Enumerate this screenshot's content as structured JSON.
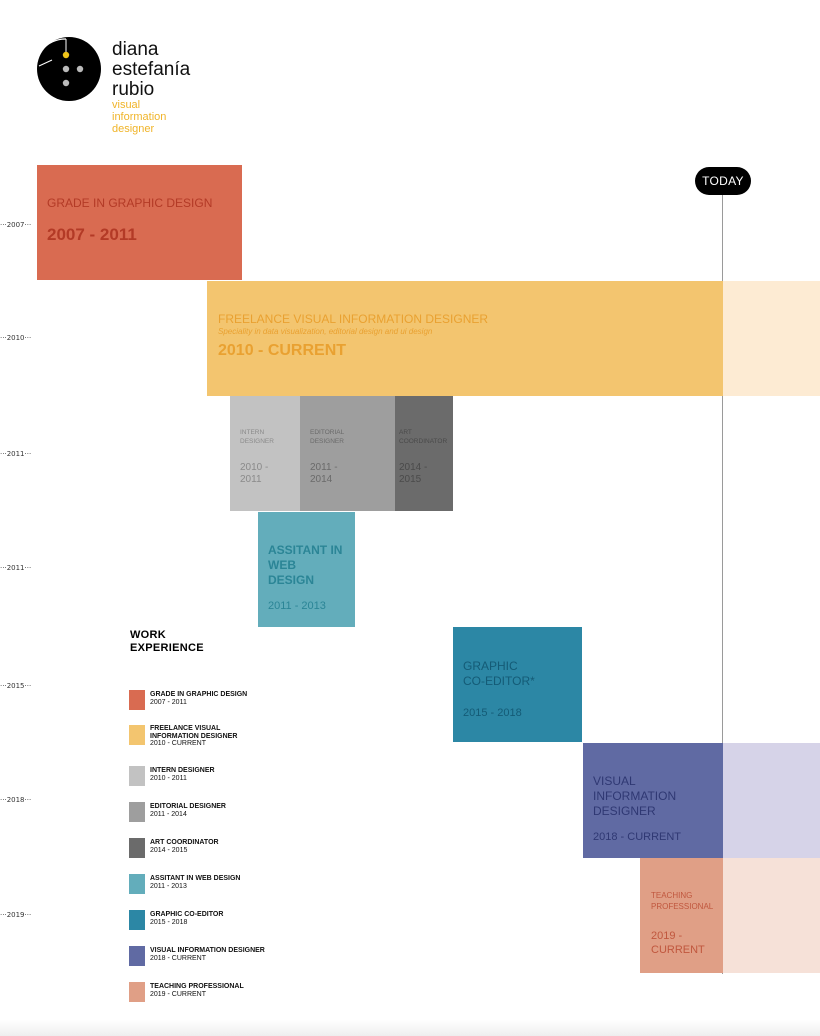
{
  "colors": {
    "grade": "#d96b51",
    "freelance": "#f3c56f",
    "freelance_extension": "#fdebd3",
    "intern": "#c2c2c2",
    "editorial": "#9e9e9e",
    "art": "#6b6b6b",
    "web": "#63adbb",
    "coeditor": "#2c87a5",
    "visual": "#606aa3",
    "visual_extension": "#d6d3e8",
    "teaching": "#e09f86",
    "teaching_extension": "#f6e1d8",
    "logo_accent": "#f0b429"
  },
  "logo": {
    "icon": "button-logo-icon",
    "name_lines": [
      "diana",
      "estefanía",
      "rubio"
    ],
    "role_lines": [
      "visual",
      "information",
      "designer"
    ]
  },
  "today_label": "TODAY",
  "ticks": [
    "2007",
    "2010",
    "2011",
    "2011",
    "2015",
    "2018",
    "2019"
  ],
  "blocks": {
    "grade": {
      "title": "GRADE IN GRAPHIC DESIGN",
      "period": "2007  - 2011"
    },
    "freelance": {
      "title": "FREELANCE VISUAL INFORMATION DESIGNER",
      "subtitle": "Speciality in data visualization, editorial design and ui design",
      "period": "2010 -  CURRENT"
    },
    "intern": {
      "title_lines": [
        "INTERN",
        "DESIGNER"
      ],
      "period_lines": [
        "2010 -",
        "2011"
      ]
    },
    "editorial": {
      "title_lines": [
        "EDITORIAL",
        "DESIGNER"
      ],
      "period_lines": [
        "2011 -",
        "2014"
      ]
    },
    "art": {
      "title_lines": [
        "ART",
        "COORDINATOR"
      ],
      "period_lines": [
        "2014 -",
        "2015"
      ]
    },
    "web": {
      "title_lines": [
        "ASSITANT IN",
        "WEB",
        "DESIGN"
      ],
      "period": "2011 - 2013"
    },
    "coeditor": {
      "title_lines": [
        "GRAPHIC",
        "CO-EDITOR*"
      ],
      "period": "2015 - 2018"
    },
    "visual": {
      "title_lines": [
        "VISUAL",
        "INFORMATION",
        "DESIGNER"
      ],
      "period": "2018 - CURRENT"
    },
    "teaching": {
      "title_lines": [
        "TEACHING",
        "PROFESSIONAL"
      ],
      "period_lines": [
        "2019 -",
        "CURRENT"
      ]
    }
  },
  "legend": {
    "title_lines": [
      "WORK",
      "EXPERIENCE"
    ],
    "items": [
      {
        "label_lines": [
          "GRADE IN GRAPHIC DESIGN"
        ],
        "sub": "2007 - 2011",
        "color": "#d96b51"
      },
      {
        "label_lines": [
          "FREELANCE VISUAL",
          "INFORMATION DESIGNER"
        ],
        "sub": "2010 - CURRENT",
        "color": "#f3c56f"
      },
      {
        "label_lines": [
          "INTERN DESIGNER"
        ],
        "sub": "2010 - 2011",
        "color": "#c2c2c2"
      },
      {
        "label_lines": [
          "EDITORIAL DESIGNER"
        ],
        "sub": "2011 - 2014",
        "color": "#9e9e9e"
      },
      {
        "label_lines": [
          "ART  COORDINATOR"
        ],
        "sub": "2014 - 2015",
        "color": "#6b6b6b"
      },
      {
        "label_lines": [
          "ASSITANT IN WEB DESIGN"
        ],
        "sub": "2011 - 2013",
        "color": "#63adbb"
      },
      {
        "label_lines": [
          "GRAPHIC CO-EDITOR"
        ],
        "sub": "2015 - 2018",
        "color": "#2c87a5"
      },
      {
        "label_lines": [
          "VISUAL INFORMATION DESIGNER"
        ],
        "sub": "2018 - CURRENT",
        "color": "#606aa3"
      },
      {
        "label_lines": [
          "TEACHING PROFESSIONAL"
        ],
        "sub": "2019 - CURRENT",
        "color": "#e09f86"
      }
    ]
  }
}
